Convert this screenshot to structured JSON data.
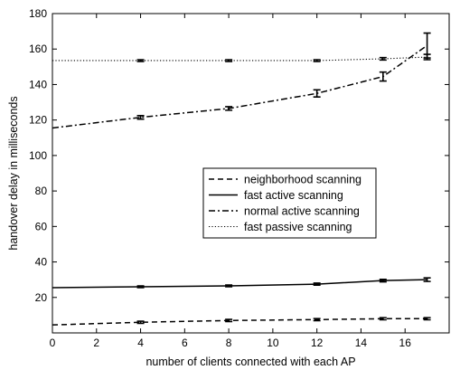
{
  "chart_data": {
    "type": "line",
    "title": "",
    "xlabel": "number of clients connected with each AP",
    "ylabel": "handover delay in milliseconds",
    "xlim": [
      0,
      18
    ],
    "ylim": [
      0,
      180
    ],
    "xticks": [
      0,
      2,
      4,
      6,
      8,
      10,
      12,
      14,
      16
    ],
    "yticks": [
      20,
      40,
      60,
      80,
      100,
      120,
      140,
      160,
      180
    ],
    "grid": false,
    "legend_position": "center-right",
    "series": [
      {
        "name": "neighborhood scanning",
        "style": "dashed",
        "color": "#000000",
        "x": [
          0,
          4,
          8,
          12,
          15,
          17
        ],
        "y": [
          4.5,
          6,
          7,
          7.5,
          8,
          8
        ],
        "err": [
          0,
          0.6,
          0.6,
          0.6,
          0.6,
          0.6
        ]
      },
      {
        "name": "fast active scanning",
        "style": "solid",
        "color": "#000000",
        "x": [
          0,
          4,
          8,
          12,
          15,
          17
        ],
        "y": [
          25.5,
          26,
          26.5,
          27.5,
          29.5,
          30
        ],
        "err": [
          0,
          0.5,
          0.5,
          0.6,
          0.7,
          1
        ]
      },
      {
        "name": "normal active scanning",
        "style": "dashdot",
        "color": "#000000",
        "x": [
          0,
          4,
          8,
          12,
          15,
          17
        ],
        "y": [
          115.5,
          121.5,
          126.5,
          135,
          144.5,
          162
        ],
        "err": [
          0,
          1,
          1,
          2,
          2.5,
          7
        ]
      },
      {
        "name": "fast passive scanning",
        "style": "dotted",
        "color": "#000000",
        "x": [
          0,
          4,
          8,
          12,
          15,
          17
        ],
        "y": [
          153.5,
          153.5,
          153.5,
          153.5,
          154.5,
          155.5
        ],
        "err": [
          0,
          0.5,
          0.5,
          0.5,
          0.7,
          1.5
        ]
      }
    ]
  }
}
